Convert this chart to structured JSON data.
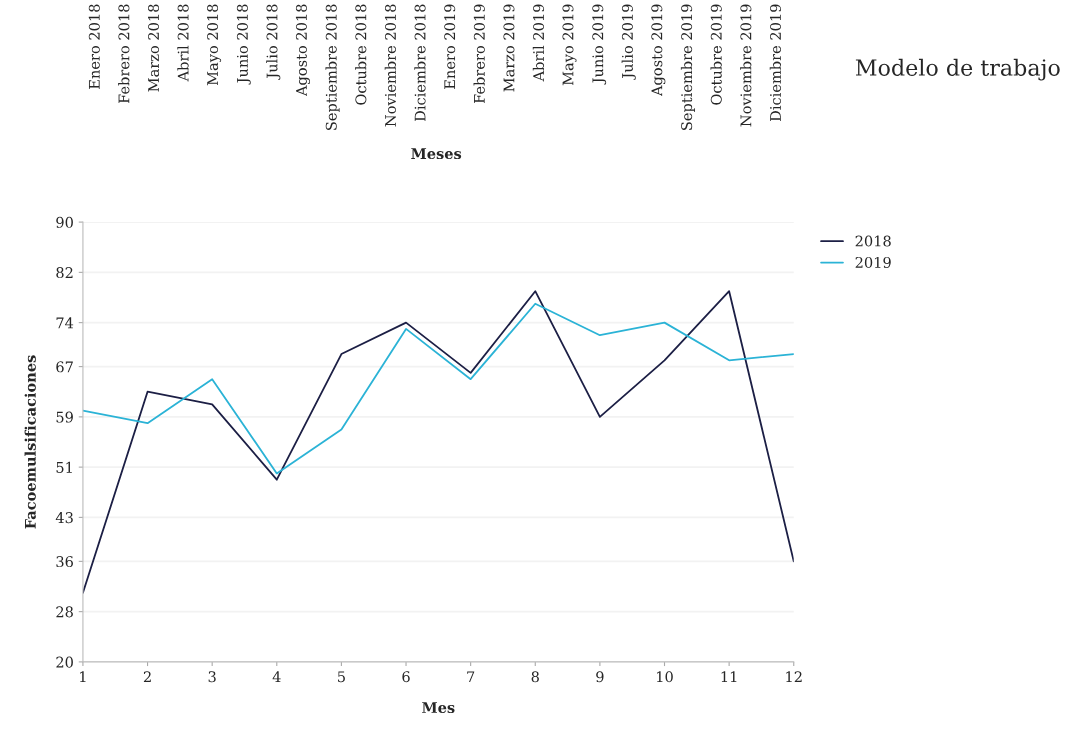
{
  "chart_data": [
    {
      "type": "other",
      "categories": [
        "Enero 2018",
        "Febrero 2018",
        "Marzo 2018",
        "Abril 2018",
        "Mayo 2018",
        "Junio 2018",
        "Julio 2018",
        "Agosto 2018",
        "Septiembre 2018",
        "Octubre 2018",
        "Noviembre 2018",
        "Diciembre 2018",
        "Enero 2019",
        "Febrero 2019",
        "Marzo 2019",
        "Abril 2019",
        "Mayo 2019",
        "Junio 2019",
        "Julio 2019",
        "Agosto 2019",
        "Septiembre 2019",
        "Octubre 2019",
        "Noviembre 2019",
        "Diciembre 2019"
      ],
      "xlabel": "Meses",
      "annotations": [
        "Modelo de trabajo"
      ]
    },
    {
      "type": "line",
      "x": [
        1,
        2,
        3,
        4,
        5,
        6,
        7,
        8,
        9,
        10,
        11,
        12
      ],
      "xlabel": "Mes",
      "ylabel": "Facoemulsificaciones",
      "xlim": [
        1,
        12
      ],
      "xticks": [
        1,
        2,
        3,
        4,
        5,
        6,
        7,
        8,
        9,
        10,
        11,
        12
      ],
      "ylim": [
        20,
        90
      ],
      "yticks": [
        20,
        28,
        36,
        43,
        51,
        59,
        67,
        74,
        82,
        90
      ],
      "grid": "y",
      "legend": "top right",
      "series": [
        {
          "name": "2018",
          "color": "#1c1f45",
          "values": [
            31,
            63,
            61,
            49,
            69,
            74,
            66,
            79,
            59,
            68,
            79,
            36
          ]
        },
        {
          "name": "2019",
          "color": "#2bb3d6",
          "values": [
            60,
            58,
            65,
            50,
            57,
            73,
            65,
            77,
            72,
            74,
            68,
            69
          ]
        }
      ]
    }
  ]
}
